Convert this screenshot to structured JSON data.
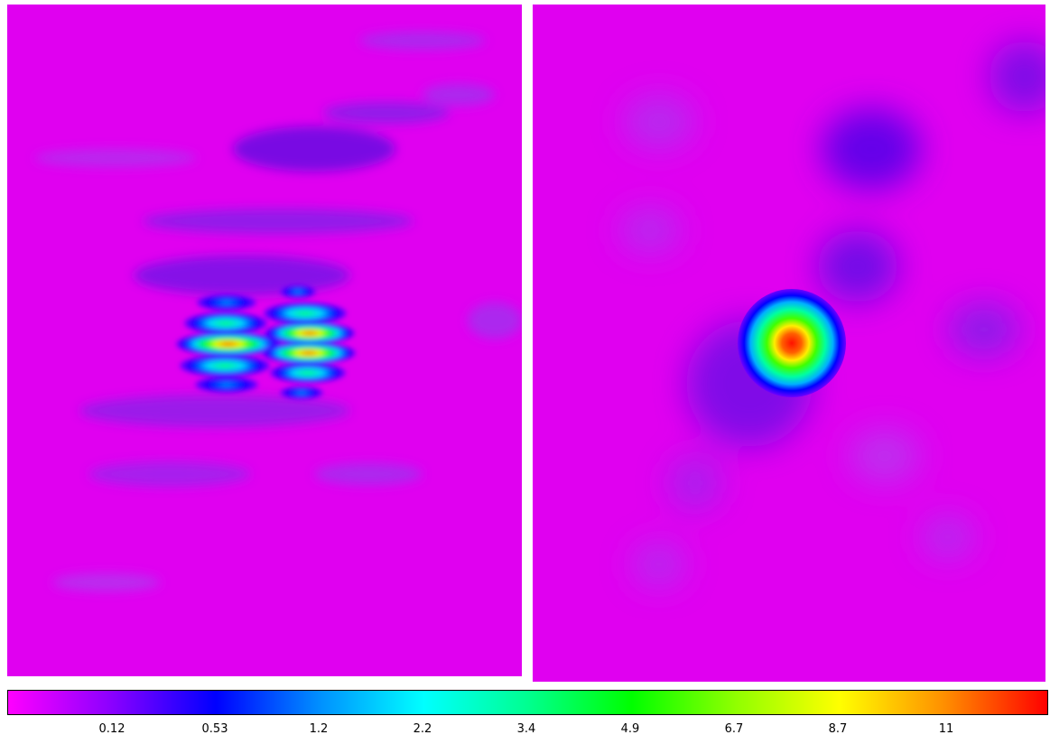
{
  "colorbar": {
    "ticks": [
      "0.12",
      "0.53",
      "1.2",
      "2.2",
      "3.4",
      "4.9",
      "6.7",
      "8.7",
      "11"
    ],
    "colors": [
      "#ff00ff",
      "#8a00ff",
      "#0000ff",
      "#0090ff",
      "#00ffff",
      "#00ff90",
      "#00ff00",
      "#90ff00",
      "#ffff00",
      "#ff9000",
      "#ff0000"
    ]
  },
  "panels": {
    "background": "#e000f0",
    "left_label": "",
    "right_label": ""
  }
}
